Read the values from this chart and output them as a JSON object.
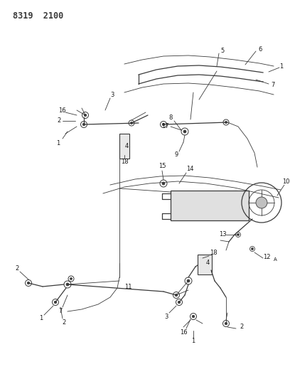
{
  "title": "8319  2100",
  "bg_color": "#ffffff",
  "line_color": "#3a3a3a",
  "label_color": "#1a1a1a",
  "fig_width": 4.08,
  "fig_height": 5.33,
  "dpi": 100,
  "title_fontsize": 8.5,
  "label_fontsize": 6.0
}
